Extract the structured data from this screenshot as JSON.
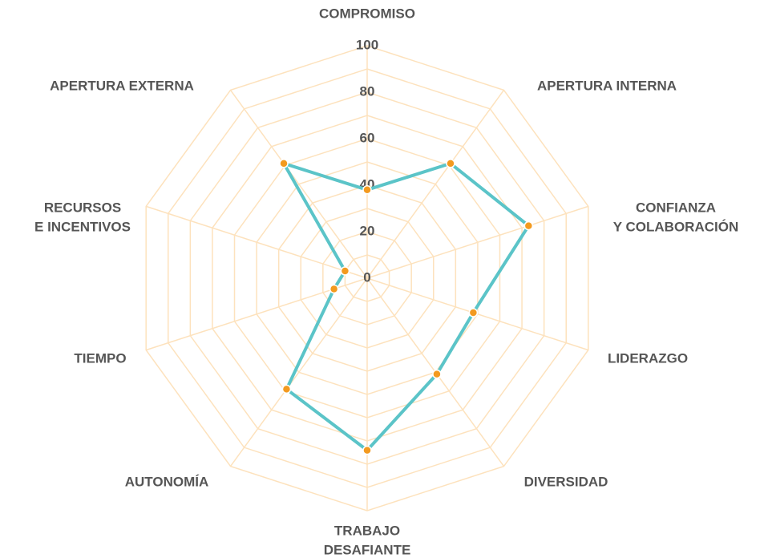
{
  "chart_data": {
    "type": "radar",
    "categories": [
      [
        "COMPROMISO"
      ],
      [
        "APERTURA INTERNA"
      ],
      [
        "CONFIANZA",
        "Y COLABORACIÓN"
      ],
      [
        "LIDERAZGO"
      ],
      [
        "DIVERSIDAD"
      ],
      [
        "TRABAJO",
        "DESAFIANTE"
      ],
      [
        "AUTONOMÍA"
      ],
      [
        "TIEMPO"
      ],
      [
        "RECURSOS",
        "E INCENTIVOS"
      ],
      [
        "APERTURA EXTERNA"
      ]
    ],
    "values": [
      38,
      61,
      73,
      48,
      51,
      74,
      59,
      15,
      10,
      61
    ],
    "color": "#5bc4c8",
    "marker_color": "#f39a1f",
    "grid_color": "#fde2bd",
    "ylim": [
      0,
      100
    ],
    "yticks": [
      0,
      20,
      40,
      60,
      80,
      100
    ],
    "grid_rings": [
      10,
      20,
      30,
      40,
      50,
      60,
      70,
      80,
      90,
      100
    ]
  }
}
